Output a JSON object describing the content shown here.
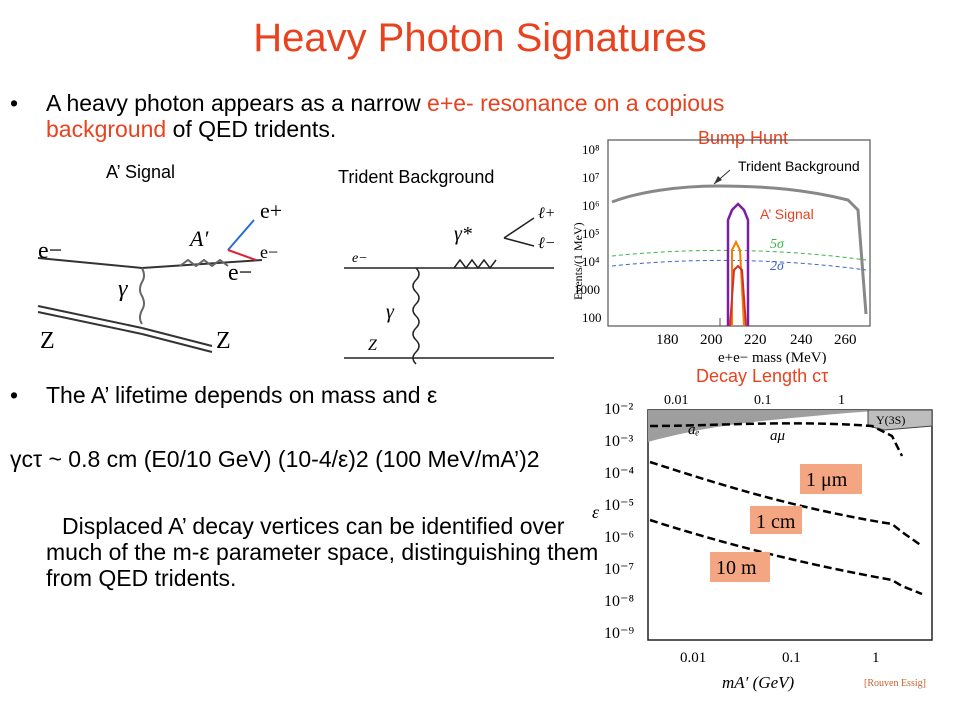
{
  "slide": {
    "title": "Heavy Photon Signatures",
    "bullet1": {
      "prefix": "A heavy photon appears as a narrow ",
      "highlight1": "e+e- resonance on a copious background",
      "suffix": " of QED tridents."
    },
    "bullet2": "The A’ lifetime depends on mass and ε",
    "formula": "γcτ ~ 0.8 cm (E0/10 GeV) (10-4/ε)2 (100 MeV/mA’)2",
    "displaced_text": "Displaced A’ decay vertices can be identified over much of the m-ε parameter space, distinguishing them from QED tridents."
  },
  "diagram_a": {
    "title": "A’ Signal",
    "labels": [
      "e−",
      "A′",
      "e+",
      "e−",
      "e−",
      "γ",
      "Z",
      "Z"
    ]
  },
  "diagram_trident": {
    "title": "Trident Background",
    "labels": [
      "e−",
      "γ*",
      "ℓ+",
      "ℓ−",
      "γ",
      "Z"
    ]
  },
  "bump_hunt": {
    "title": "Bump Hunt",
    "annot_background": "Trident Background",
    "annot_signal": "A’ Signal",
    "ylabel": "Events/(1 MeV)",
    "xlabel": "e+e− mass (MeV)",
    "xticks": [
      "180",
      "200",
      "220",
      "240",
      "260"
    ],
    "yticks": [
      "10⁸",
      "10⁷",
      "10⁶",
      "10⁵",
      "10⁴",
      "1000",
      "100"
    ],
    "sigma_labels": [
      "5σ",
      "2σ"
    ]
  },
  "decay_length": {
    "title": "Decay Length cτ",
    "xticks_top": [
      "0.01",
      "0.1",
      "1"
    ],
    "xticks_bottom": [
      "0.01",
      "0.1",
      "1"
    ],
    "yticks": [
      "10⁻²",
      "10⁻³",
      "10⁻⁴",
      "10⁻⁵",
      "10⁻⁶",
      "10⁻⁷",
      "10⁻⁸",
      "10⁻⁹"
    ],
    "ylabel": "ε",
    "xlabel": "mA′ (GeV)",
    "labels": [
      "aₑ",
      "aμ",
      "Υ(3S)"
    ],
    "boxes": [
      "1 μm",
      "1 cm",
      "10 m"
    ],
    "credit": "[Rouven Essig]"
  },
  "colors": {
    "accent": "#e8421e"
  }
}
